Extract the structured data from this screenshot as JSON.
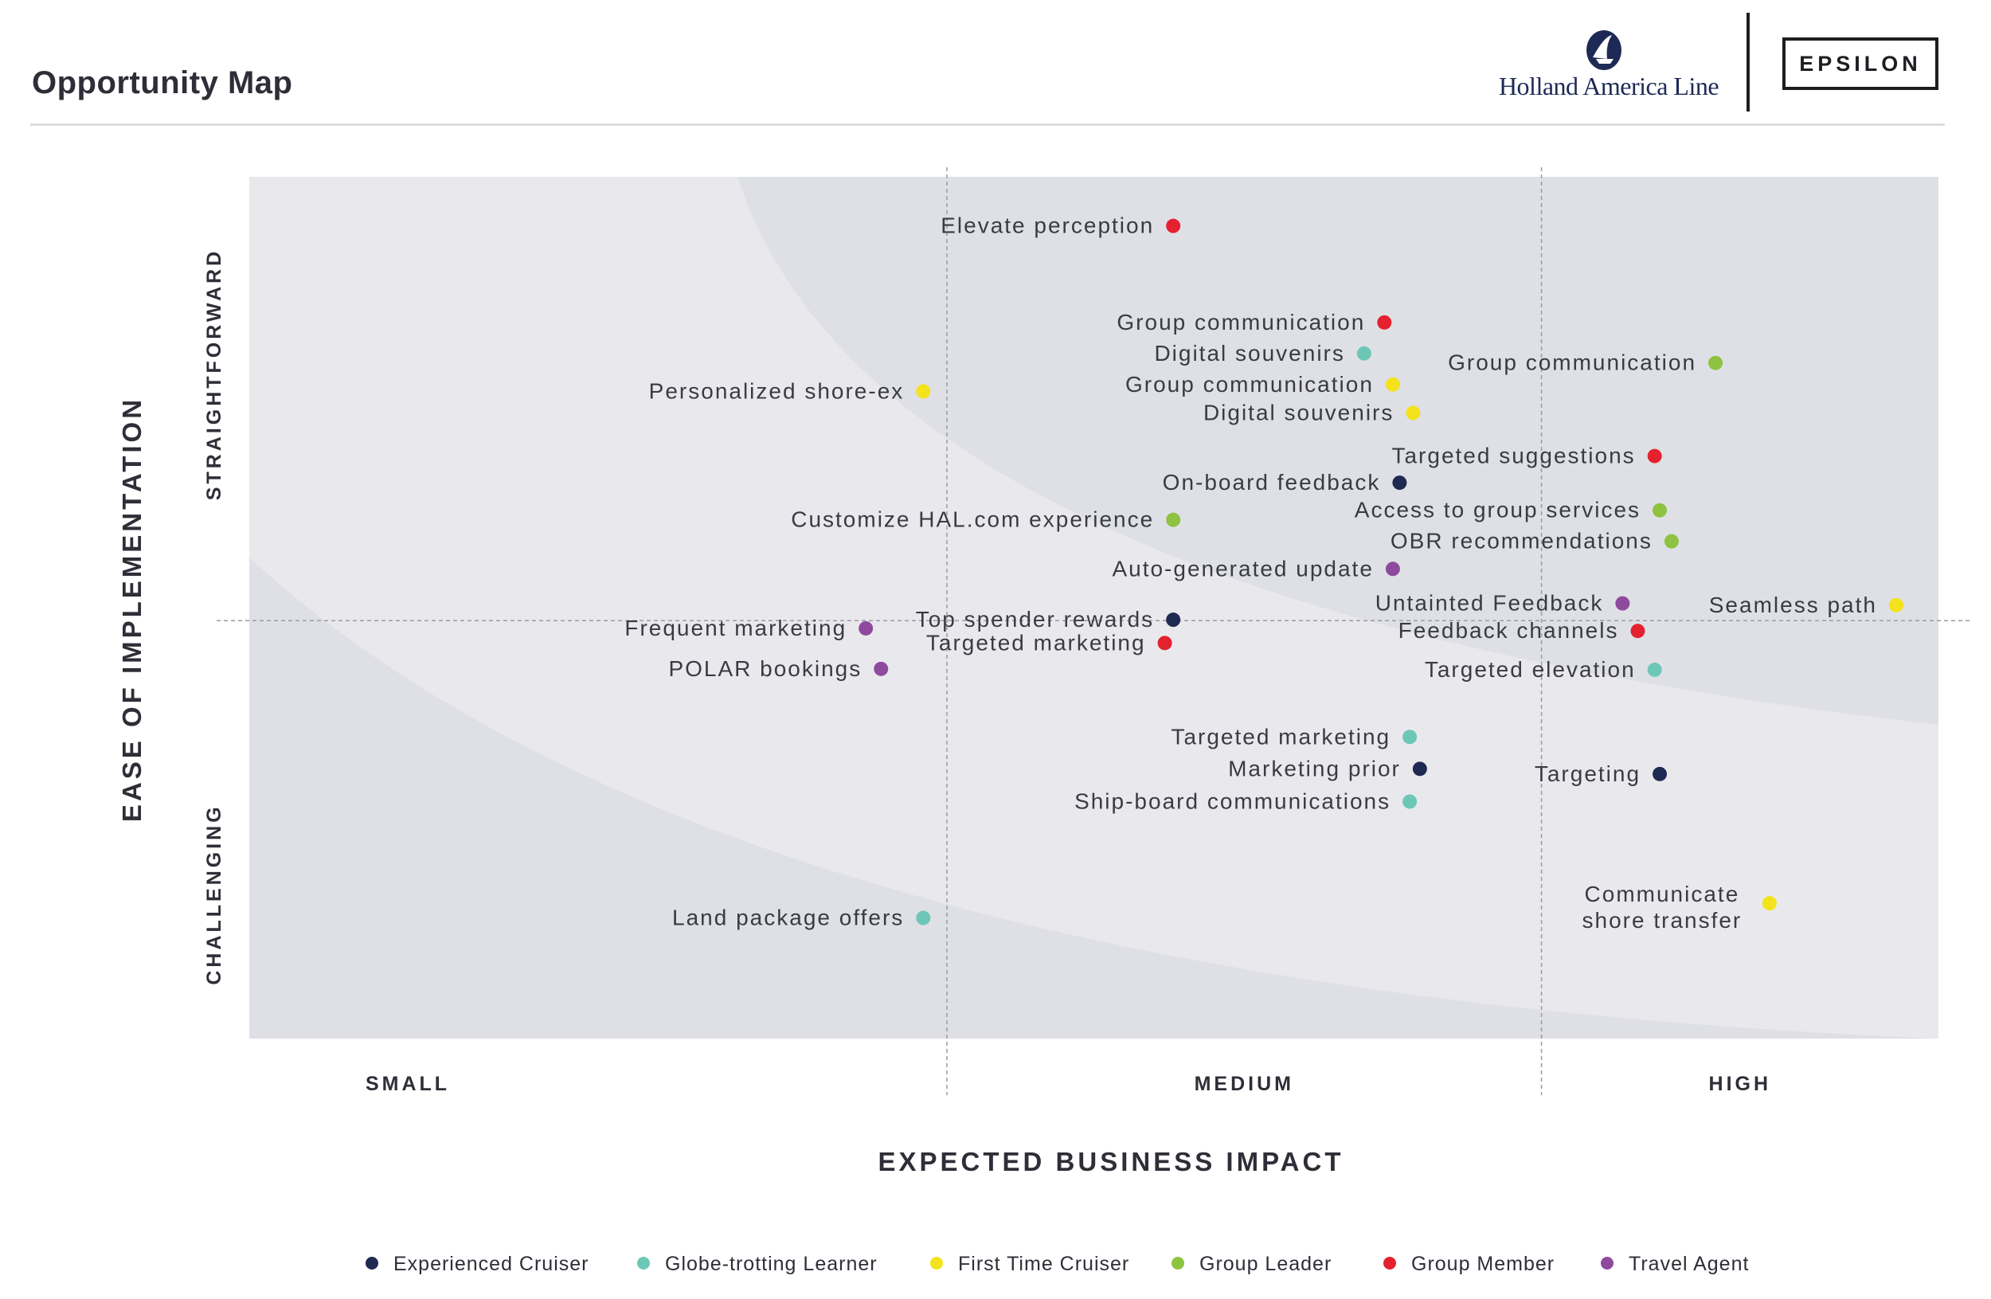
{
  "header": {
    "title": "Opportunity Map",
    "logos": {
      "primary": "Holland America Line",
      "primary_mark": "ship-emblem-icon",
      "secondary": "EPSILON"
    }
  },
  "chart_data": {
    "type": "scatter",
    "title": "",
    "xlabel": "EXPECTED BUSINESS IMPACT",
    "ylabel": "EASE OF IMPLEMENTATION",
    "x_categories": [
      "SMALL",
      "MEDIUM",
      "HIGH"
    ],
    "y_categories": [
      "CHALLENGING",
      "STRAIGHTFORWARD"
    ],
    "xlim": [
      0,
      100
    ],
    "ylim": [
      0,
      100
    ],
    "x_dividers": [
      41.3,
      76.5
    ],
    "y_divider": 48.5,
    "grid": false,
    "legend_placement": "bottom-center",
    "series": [
      {
        "name": "Experienced Cruiser",
        "color": "#1f2a52",
        "points": [
          {
            "label": "On-board feedback",
            "x": 68.1,
            "y": 64.5
          },
          {
            "label": "Top spender rewards",
            "x": 54.7,
            "y": 48.6
          },
          {
            "label": "Marketing prior",
            "x": 69.3,
            "y": 31.3
          },
          {
            "label": "Targeting",
            "x": 83.5,
            "y": 30.7
          }
        ]
      },
      {
        "name": "Globe-trotting Learner",
        "color": "#6cc7b7",
        "points": [
          {
            "label": "Digital souvenirs",
            "x": 66.0,
            "y": 79.5
          },
          {
            "label": "Targeted elevation",
            "x": 83.2,
            "y": 42.8
          },
          {
            "label": "Targeted marketing",
            "x": 68.7,
            "y": 35.0
          },
          {
            "label": "Ship-board communications",
            "x": 68.7,
            "y": 27.5
          },
          {
            "label": "Land package offers",
            "x": 39.9,
            "y": 14.0
          }
        ]
      },
      {
        "name": "First Time Cruiser",
        "color": "#f4e21c",
        "points": [
          {
            "label": "Personalized shore-ex",
            "x": 39.9,
            "y": 75.1
          },
          {
            "label": "Group communication",
            "x": 67.7,
            "y": 75.9
          },
          {
            "label": "Digital souvenirs",
            "x": 68.9,
            "y": 72.6
          },
          {
            "label": "Seamless path",
            "x": 97.5,
            "y": 50.3
          },
          {
            "label": "Communicate shore transfer",
            "x": 90.0,
            "y": 15.7
          }
        ]
      },
      {
        "name": "Group Leader",
        "color": "#8dc341",
        "points": [
          {
            "label": "Group communication",
            "x": 86.8,
            "y": 78.4
          },
          {
            "label": "Customize HAL.com experience",
            "x": 54.7,
            "y": 60.2
          },
          {
            "label": "Access to group services",
            "x": 83.5,
            "y": 61.3
          },
          {
            "label": "OBR recommendations",
            "x": 84.2,
            "y": 57.7
          }
        ]
      },
      {
        "name": "Group Member",
        "color": "#e4212e",
        "points": [
          {
            "label": "Elevate perception",
            "x": 54.7,
            "y": 94.3
          },
          {
            "label": "Group communication",
            "x": 67.2,
            "y": 83.1
          },
          {
            "label": "Targeted suggestions",
            "x": 83.2,
            "y": 67.6
          },
          {
            "label": "Feedback channels",
            "x": 82.2,
            "y": 47.3
          },
          {
            "label": "Targeted marketing",
            "x": 54.2,
            "y": 45.9
          }
        ]
      },
      {
        "name": "Travel Agent",
        "color": "#8e4a9e",
        "points": [
          {
            "label": "Auto-generated update",
            "x": 67.7,
            "y": 54.5
          },
          {
            "label": "Untainted Feedback",
            "x": 81.3,
            "y": 50.5
          },
          {
            "label": "Frequent marketing",
            "x": 36.5,
            "y": 47.6
          },
          {
            "label": "POLAR bookings",
            "x": 37.4,
            "y": 42.9
          }
        ]
      }
    ]
  }
}
